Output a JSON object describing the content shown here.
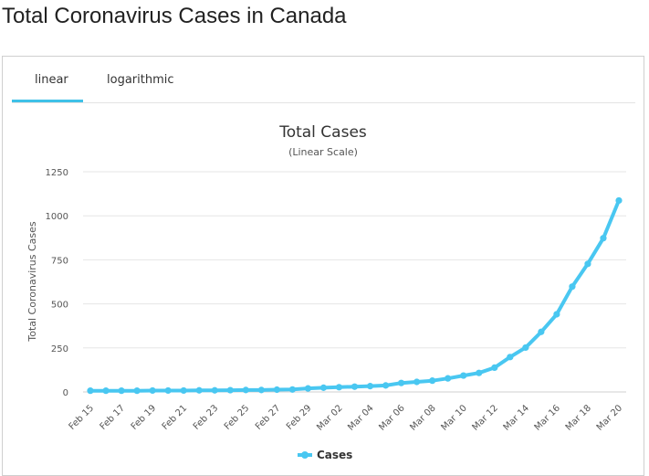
{
  "page": {
    "heading": "Total Coronavirus Cases in Canada"
  },
  "tabs": {
    "linear": "linear",
    "logarithmic": "logarithmic",
    "active": "linear"
  },
  "chart_data": {
    "type": "line",
    "title": "Total Cases",
    "subtitle": "(Linear Scale)",
    "xlabel": "",
    "ylabel": "Total Coronavirus Cases",
    "ylim": [
      0,
      1250
    ],
    "yticks": [
      0,
      250,
      500,
      750,
      1000,
      1250
    ],
    "grid": true,
    "legend": "bottom-center",
    "color": "#49c7f1",
    "x": [
      "Feb 15",
      "Feb 16",
      "Feb 17",
      "Feb 18",
      "Feb 19",
      "Feb 20",
      "Feb 21",
      "Feb 22",
      "Feb 23",
      "Feb 24",
      "Feb 25",
      "Feb 26",
      "Feb 27",
      "Feb 28",
      "Feb 29",
      "Mar 01",
      "Mar 02",
      "Mar 03",
      "Mar 04",
      "Mar 05",
      "Mar 06",
      "Mar 07",
      "Mar 08",
      "Mar 09",
      "Mar 10",
      "Mar 11",
      "Mar 12",
      "Mar 13",
      "Mar 14",
      "Mar 15",
      "Mar 16",
      "Mar 17",
      "Mar 18",
      "Mar 19",
      "Mar 20"
    ],
    "xtick_labels": [
      "Feb 15",
      "Feb 17",
      "Feb 19",
      "Feb 21",
      "Feb 23",
      "Feb 25",
      "Feb 27",
      "Feb 29",
      "Mar 02",
      "Mar 04",
      "Mar 06",
      "Mar 08",
      "Mar 10",
      "Mar 12",
      "Mar 14",
      "Mar 16",
      "Mar 18",
      "Mar 20"
    ],
    "series": [
      {
        "name": "Cases",
        "values": [
          7,
          7,
          7,
          7,
          8,
          8,
          8,
          9,
          9,
          10,
          11,
          11,
          13,
          14,
          20,
          24,
          27,
          30,
          33,
          37,
          51,
          57,
          64,
          77,
          93,
          108,
          138,
          198,
          252,
          341,
          441,
          598,
          727,
          873,
          1087
        ]
      }
    ]
  }
}
